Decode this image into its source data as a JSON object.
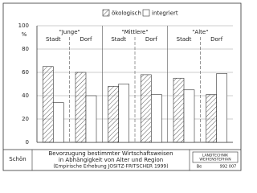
{
  "chart_data": {
    "type": "bar",
    "y_unit": "%",
    "groups": [
      "\"Junge\"",
      "\"Mittlere\"",
      "\"Alte\""
    ],
    "categories": [
      "Stadt",
      "Dorf",
      "Stadt",
      "Dorf",
      "Stadt",
      "Dorf"
    ],
    "series": [
      {
        "name": "ökologisch",
        "color": "#333333",
        "pattern": "diagonal-hatch",
        "values": [
          65,
          60,
          48,
          58,
          55,
          41
        ]
      },
      {
        "name": "integriert",
        "color": "#ffffff",
        "values": [
          34,
          40,
          50,
          41,
          45,
          59
        ]
      }
    ],
    "ylim": [
      0,
      100
    ],
    "yticks": [
      0,
      20,
      40,
      60,
      80,
      100
    ],
    "grid": true
  },
  "footer": {
    "author": "Schön",
    "title": [
      "Bevorzugung bestimmter Wirtschaftsweisen",
      "in Abhängigkeit von Alter und Region"
    ],
    "source": "(Empirische Erhebung JOSITZ-FRITSCHER 1999)",
    "logo": [
      "LANDTECHNIK",
      "WEIHENSTEPHAN"
    ],
    "code": [
      "Be",
      "992 007"
    ]
  }
}
